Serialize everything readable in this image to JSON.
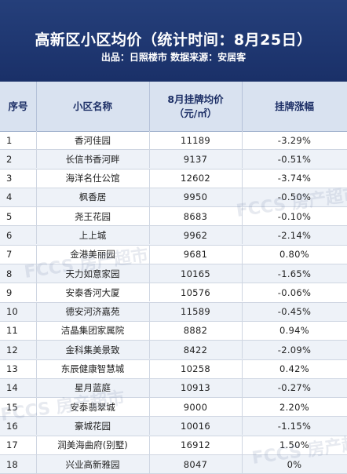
{
  "banner": {
    "title": "高新区小区均价（统计时间：8月25日）",
    "subtitle": "出品：日照楼市   数据来源：安居客"
  },
  "table": {
    "headers": {
      "no": "序号",
      "name": "小区名称",
      "price_line1": "8月挂牌均价",
      "price_line2": "（元/㎡）",
      "change": "挂牌涨幅"
    },
    "rows": [
      {
        "no": "1",
        "name": "香河佳园",
        "price": "11189",
        "change": "-3.29%"
      },
      {
        "no": "2",
        "name": "长信书香河畔",
        "price": "9137",
        "change": "-0.51%"
      },
      {
        "no": "3",
        "name": "海洋名仕公馆",
        "price": "12602",
        "change": "-3.74%"
      },
      {
        "no": "4",
        "name": "枫香居",
        "price": "9950",
        "change": "-0.50%"
      },
      {
        "no": "5",
        "name": "尧王花园",
        "price": "8683",
        "change": "-0.10%"
      },
      {
        "no": "6",
        "name": "上上城",
        "price": "9962",
        "change": "-2.14%"
      },
      {
        "no": "7",
        "name": "金港美丽园",
        "price": "9681",
        "change": "0.80%"
      },
      {
        "no": "8",
        "name": "天力如意家园",
        "price": "10165",
        "change": "-1.65%"
      },
      {
        "no": "9",
        "name": "安泰香河大厦",
        "price": "10576",
        "change": "-0.06%"
      },
      {
        "no": "10",
        "name": "德安河济嘉苑",
        "price": "11589",
        "change": "-0.45%"
      },
      {
        "no": "11",
        "name": "洁晶集团家属院",
        "price": "8882",
        "change": "0.94%"
      },
      {
        "no": "12",
        "name": "金科集美景致",
        "price": "8422",
        "change": "-2.09%"
      },
      {
        "no": "13",
        "name": "东辰健康智慧城",
        "price": "10258",
        "change": "0.42%"
      },
      {
        "no": "14",
        "name": "星月蓝庭",
        "price": "10913",
        "change": "-0.27%"
      },
      {
        "no": "15",
        "name": "安泰翡翠城",
        "price": "9000",
        "change": "2.20%"
      },
      {
        "no": "16",
        "name": "豪城花园",
        "price": "10016",
        "change": "-1.15%"
      },
      {
        "no": "17",
        "name": "润美海曲府(别墅)",
        "price": "16912",
        "change": "1.50%"
      },
      {
        "no": "18",
        "name": "兴业高新雅园",
        "price": "8047",
        "change": "0%"
      }
    ]
  },
  "watermark": {
    "text": "FCCS 房产超市"
  },
  "colors": {
    "banner": "#1e3670",
    "header_bg": "#d9e2f0",
    "header_text": "#1d2f66"
  }
}
